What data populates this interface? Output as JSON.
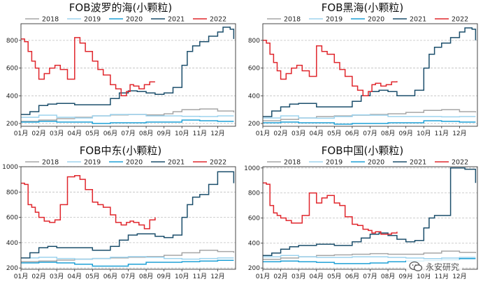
{
  "chart_data": [
    {
      "type": "line",
      "title": "FOB波罗的海(小颗粒)",
      "months": [
        "01月",
        "02月",
        "03月",
        "04月",
        "05月",
        "06月",
        "07月",
        "08月",
        "09月",
        "10月",
        "11月",
        "12月"
      ],
      "ylim": [
        180,
        920
      ],
      "yticks": [
        200,
        400,
        600,
        800
      ],
      "legend": "top",
      "grid": true,
      "series": [
        {
          "name": "2018",
          "color": "#a6a6a6",
          "x": [
            1,
            2,
            3,
            4,
            5,
            6,
            7,
            8,
            9,
            9.5,
            10,
            11,
            12,
            12.9
          ],
          "values": [
            215,
            225,
            235,
            245,
            255,
            262,
            265,
            262,
            270,
            285,
            300,
            305,
            290,
            280
          ]
        },
        {
          "name": "2019",
          "color": "#9dd3ee",
          "x": [
            1,
            2,
            3,
            4,
            5,
            6,
            7,
            8,
            9,
            10,
            11,
            12,
            12.9
          ],
          "values": [
            245,
            260,
            245,
            240,
            255,
            265,
            265,
            255,
            255,
            252,
            250,
            255,
            255
          ]
        },
        {
          "name": "2020",
          "color": "#1ea0d6",
          "x": [
            1,
            2,
            3,
            4,
            5,
            6,
            7,
            8,
            9,
            10,
            11,
            12,
            12.9
          ],
          "values": [
            210,
            215,
            210,
            210,
            200,
            205,
            205,
            210,
            210,
            225,
            220,
            215,
            215
          ]
        },
        {
          "name": "2021",
          "color": "#1b4e6b",
          "x": [
            1,
            1.5,
            2,
            2.5,
            3,
            4,
            5,
            6,
            6.5,
            7,
            7.5,
            8,
            8.5,
            9,
            9.5,
            10,
            10.3,
            10.6,
            11,
            11.5,
            12,
            12.3,
            12.7,
            12.9
          ],
          "values": [
            265,
            285,
            330,
            340,
            345,
            335,
            335,
            380,
            420,
            435,
            430,
            420,
            410,
            420,
            460,
            620,
            720,
            760,
            790,
            830,
            860,
            895,
            880,
            810
          ]
        },
        {
          "name": "2022",
          "color": "#e0262c",
          "x": [
            1,
            1.2,
            1.4,
            1.6,
            1.8,
            2,
            2.3,
            2.6,
            2.9,
            3.2,
            3.6,
            4,
            4.3,
            4.6,
            5,
            5.3,
            5.6,
            6,
            6.3,
            6.6,
            6.9,
            7.1,
            7.3,
            7.6,
            7.9,
            8.2,
            8.5
          ],
          "values": [
            810,
            790,
            720,
            650,
            600,
            520,
            560,
            600,
            620,
            590,
            520,
            820,
            780,
            720,
            650,
            590,
            550,
            480,
            450,
            400,
            430,
            480,
            470,
            450,
            480,
            500,
            500
          ]
        }
      ]
    },
    {
      "type": "line",
      "title": "FOB黑海(小颗粒)",
      "months": [
        "01月",
        "02月",
        "03月",
        "04月",
        "05月",
        "06月",
        "07月",
        "08月",
        "09月",
        "10月",
        "11月",
        "12月"
      ],
      "ylim": [
        180,
        920
      ],
      "yticks": [
        200,
        400,
        600,
        800
      ],
      "legend": "top",
      "grid": true,
      "series": [
        {
          "name": "2018",
          "color": "#a6a6a6",
          "x": [
            1,
            2,
            3,
            4,
            5,
            6,
            7,
            8,
            9,
            10,
            11,
            12,
            12.9
          ],
          "values": [
            220,
            230,
            240,
            250,
            255,
            260,
            265,
            270,
            280,
            295,
            300,
            285,
            280
          ]
        },
        {
          "name": "2019",
          "color": "#9dd3ee",
          "x": [
            1,
            2,
            3,
            4,
            5,
            6,
            7,
            8,
            9,
            10,
            11,
            12,
            12.9
          ],
          "values": [
            240,
            255,
            240,
            238,
            250,
            262,
            260,
            250,
            250,
            250,
            248,
            250,
            250
          ]
        },
        {
          "name": "2020",
          "color": "#1ea0d6",
          "x": [
            1,
            2,
            3,
            4,
            5,
            6,
            7,
            8,
            9,
            10,
            11,
            12,
            12.9
          ],
          "values": [
            205,
            210,
            205,
            205,
            195,
            200,
            200,
            205,
            205,
            220,
            215,
            210,
            210
          ]
        },
        {
          "name": "2021",
          "color": "#1b4e6b",
          "x": [
            1,
            1.5,
            2,
            2.5,
            3,
            4,
            5,
            6,
            6.5,
            7,
            7.5,
            8,
            8.5,
            9,
            9.5,
            10,
            10.3,
            10.6,
            11,
            11.5,
            12,
            12.3,
            12.7,
            12.9
          ],
          "values": [
            250,
            290,
            320,
            340,
            345,
            320,
            320,
            360,
            400,
            430,
            440,
            430,
            400,
            400,
            440,
            600,
            700,
            750,
            780,
            820,
            860,
            890,
            880,
            800
          ]
        },
        {
          "name": "2022",
          "color": "#e0262c",
          "x": [
            1,
            1.2,
            1.4,
            1.6,
            1.8,
            2,
            2.3,
            2.6,
            2.9,
            3.2,
            3.6,
            4,
            4.3,
            4.6,
            5,
            5.3,
            5.6,
            6,
            6.3,
            6.6,
            6.9,
            7.1,
            7.3,
            7.6,
            7.9,
            8.2,
            8.5
          ],
          "values": [
            800,
            780,
            700,
            640,
            580,
            520,
            560,
            600,
            620,
            580,
            540,
            760,
            720,
            700,
            640,
            590,
            540,
            470,
            440,
            400,
            430,
            480,
            490,
            470,
            480,
            500,
            505
          ]
        }
      ]
    },
    {
      "type": "line",
      "title": "FOB中东(小颗粒)",
      "months": [
        "01月",
        "02月",
        "03月",
        "04月",
        "05月",
        "06月",
        "07月",
        "08月",
        "09月",
        "10月",
        "11月",
        "12月"
      ],
      "ylim": [
        190,
        1000
      ],
      "yticks": [
        200,
        400,
        600,
        800,
        1000
      ],
      "legend": "top",
      "grid": true,
      "series": [
        {
          "name": "2018",
          "color": "#a6a6a6",
          "x": [
            1,
            2,
            3,
            4,
            5,
            6,
            7,
            8,
            9,
            10,
            11,
            12,
            12.9
          ],
          "values": [
            250,
            255,
            262,
            270,
            275,
            280,
            285,
            290,
            300,
            320,
            340,
            330,
            320
          ]
        },
        {
          "name": "2019",
          "color": "#9dd3ee",
          "x": [
            1,
            2,
            3,
            4,
            5,
            6,
            7,
            8,
            9,
            10,
            11,
            12,
            12.9
          ],
          "values": [
            280,
            285,
            275,
            270,
            275,
            285,
            290,
            285,
            275,
            270,
            275,
            280,
            280
          ]
        },
        {
          "name": "2020",
          "color": "#1ea0d6",
          "x": [
            1,
            2,
            3,
            4,
            5,
            6,
            7,
            8,
            9,
            10,
            11,
            12,
            12.9
          ],
          "values": [
            240,
            245,
            240,
            230,
            215,
            215,
            230,
            245,
            245,
            250,
            255,
            260,
            260
          ]
        },
        {
          "name": "2021",
          "color": "#1b4e6b",
          "x": [
            1,
            1.5,
            2,
            2.5,
            3,
            4,
            5,
            6,
            6.5,
            7,
            7.5,
            8,
            8.5,
            9,
            9.5,
            10,
            10.3,
            10.6,
            11,
            11.5,
            12,
            12.3,
            12.7,
            12.9
          ],
          "values": [
            280,
            320,
            360,
            370,
            360,
            360,
            340,
            370,
            420,
            460,
            470,
            470,
            450,
            440,
            460,
            600,
            700,
            760,
            780,
            860,
            960,
            960,
            960,
            870
          ]
        },
        {
          "name": "2022",
          "color": "#e0262c",
          "x": [
            1,
            1.2,
            1.4,
            1.6,
            1.8,
            2,
            2.3,
            2.6,
            2.9,
            3.2,
            3.6,
            4,
            4.3,
            4.6,
            5,
            5.3,
            5.6,
            6,
            6.3,
            6.6,
            6.9,
            7.1,
            7.3,
            7.6,
            7.9,
            8.2,
            8.5
          ],
          "values": [
            870,
            860,
            700,
            680,
            640,
            600,
            570,
            560,
            580,
            700,
            920,
            930,
            900,
            820,
            720,
            700,
            680,
            620,
            560,
            540,
            560,
            570,
            560,
            540,
            510,
            580,
            600
          ]
        }
      ]
    },
    {
      "type": "line",
      "title": "FOB中国(小颗粒)",
      "months": [
        "01月",
        "02月",
        "03月",
        "04月",
        "05月",
        "06月",
        "07月",
        "08月",
        "09月",
        "10月",
        "11月",
        "12月"
      ],
      "ylim": [
        190,
        1010
      ],
      "yticks": [
        200,
        400,
        600,
        800,
        1000
      ],
      "legend": "top",
      "grid": true,
      "series": [
        {
          "name": "2018",
          "color": "#a6a6a6",
          "x": [
            1,
            2,
            3,
            4,
            5,
            6,
            7,
            8,
            9,
            10,
            11,
            12,
            12.9
          ],
          "values": [
            270,
            280,
            290,
            300,
            305,
            310,
            315,
            310,
            310,
            320,
            335,
            325,
            320
          ]
        },
        {
          "name": "2019",
          "color": "#9dd3ee",
          "x": [
            1,
            2,
            3,
            4,
            5,
            6,
            7,
            8,
            9,
            10,
            11,
            12,
            12.9
          ],
          "values": [
            290,
            300,
            290,
            285,
            285,
            290,
            290,
            285,
            280,
            275,
            280,
            285,
            285
          ]
        },
        {
          "name": "2020",
          "color": "#1ea0d6",
          "x": [
            1,
            2,
            3,
            4,
            5,
            6,
            7,
            8,
            9,
            10,
            11,
            12,
            12.9
          ],
          "values": [
            250,
            255,
            250,
            245,
            235,
            235,
            240,
            250,
            255,
            260,
            265,
            275,
            275
          ]
        },
        {
          "name": "2021",
          "color": "#1b4e6b",
          "x": [
            1,
            1.5,
            2,
            2.5,
            3,
            4,
            5,
            6,
            6.5,
            7,
            7.5,
            8,
            8.5,
            9,
            9.5,
            10,
            10.3,
            10.6,
            11,
            11.5,
            12,
            12.3,
            12.7,
            12.9
          ],
          "values": [
            300,
            320,
            350,
            370,
            380,
            390,
            380,
            410,
            440,
            470,
            480,
            460,
            430,
            410,
            420,
            520,
            600,
            620,
            620,
            1000,
            1000,
            990,
            990,
            880
          ]
        },
        {
          "name": "2022",
          "color": "#e0262c",
          "x": [
            1,
            1.2,
            1.4,
            1.6,
            1.8,
            2,
            2.3,
            2.6,
            2.9,
            3.2,
            3.6,
            4,
            4.3,
            4.6,
            5,
            5.3,
            5.6,
            6,
            6.3,
            6.6,
            6.9,
            7.1,
            7.3,
            7.6,
            7.9,
            8.2,
            8.5
          ],
          "values": [
            880,
            870,
            700,
            640,
            620,
            600,
            580,
            560,
            560,
            620,
            800,
            720,
            760,
            780,
            720,
            700,
            610,
            550,
            540,
            510,
            500,
            480,
            490,
            470,
            470,
            480,
            490
          ]
        }
      ]
    }
  ],
  "watermark": {
    "text": "永安研究",
    "icon": "wechat-icon"
  },
  "colors": {
    "grid": "#bfbfbf",
    "axis": "#333333"
  }
}
